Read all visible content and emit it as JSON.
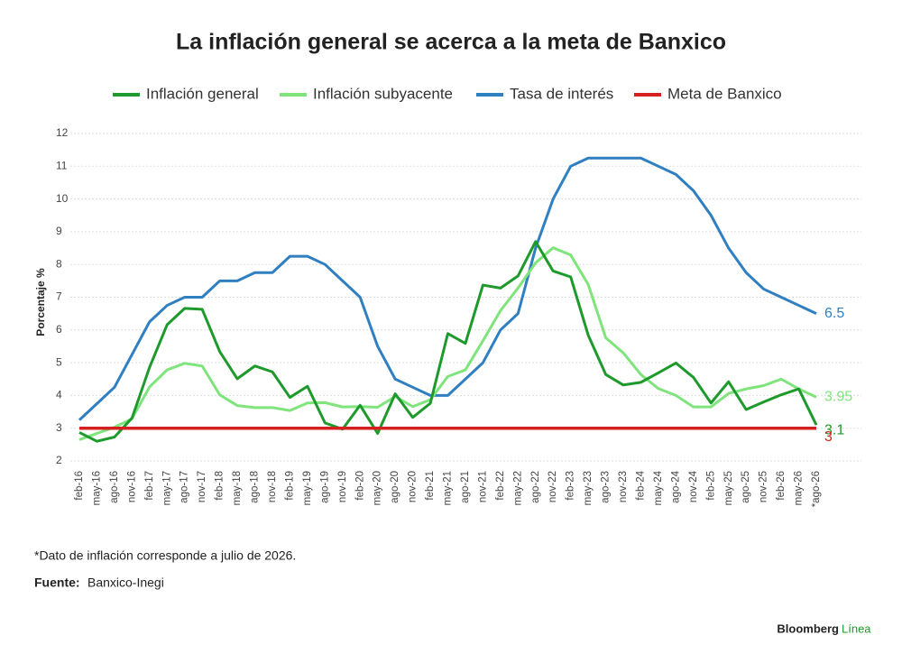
{
  "chart_data": {
    "type": "line",
    "title": "La inflación general se acerca a la meta de Banxico",
    "y_label": "Porcentaje %",
    "categories": [
      "feb-16",
      "may-16",
      "ago-16",
      "nov-16",
      "feb-17",
      "may-17",
      "ago-17",
      "nov-17",
      "feb-18",
      "may-18",
      "ago-18",
      "nov-18",
      "feb-19",
      "may-19",
      "ago-19",
      "nov-19",
      "feb-20",
      "may-20",
      "ago-20",
      "nov-20",
      "feb-21",
      "may-21",
      "ago-21",
      "nov-21",
      "feb-22",
      "may-22",
      "ago-22",
      "nov-22",
      "feb-23",
      "may-23",
      "ago-23",
      "nov-23",
      "feb-24",
      "may-24",
      "ago-24",
      "nov-24",
      "feb-25",
      "may-25",
      "ago-25",
      "nov-25",
      "feb-26",
      "may-26",
      "*ago-26"
    ],
    "series": [
      {
        "name": "Inflación general",
        "color": "#1e9a2c",
        "values": [
          2.87,
          2.6,
          2.73,
          3.31,
          4.86,
          6.16,
          6.66,
          6.63,
          5.34,
          4.51,
          4.9,
          4.72,
          3.94,
          4.28,
          3.16,
          2.97,
          3.7,
          2.84,
          4.05,
          3.33,
          3.76,
          5.89,
          5.59,
          7.37,
          7.28,
          7.65,
          8.7,
          7.8,
          7.62,
          5.84,
          4.64,
          4.32,
          4.4,
          4.69,
          4.99,
          4.55,
          3.77,
          4.42,
          3.57,
          3.8,
          4.02,
          4.2,
          3.1
        ]
      },
      {
        "name": "Inflación subyacente",
        "color": "#7fe47c",
        "values": [
          2.65,
          2.84,
          3.03,
          3.29,
          4.26,
          4.78,
          4.98,
          4.9,
          4.02,
          3.69,
          3.63,
          3.63,
          3.54,
          3.77,
          3.78,
          3.65,
          3.66,
          3.64,
          3.97,
          3.66,
          3.87,
          4.58,
          4.78,
          5.67,
          6.59,
          7.28,
          8.05,
          8.51,
          8.29,
          7.39,
          5.76,
          5.3,
          4.64,
          4.21,
          4.0,
          3.65,
          3.65,
          4.06,
          4.2,
          4.3,
          4.5,
          4.2,
          3.95
        ]
      },
      {
        "name": "Tasa de interés",
        "color": "#2f7fc1",
        "values": [
          3.25,
          3.75,
          4.25,
          5.25,
          6.25,
          6.75,
          7.0,
          7.0,
          7.5,
          7.5,
          7.75,
          7.75,
          8.25,
          8.25,
          8.0,
          7.5,
          7.0,
          5.5,
          4.5,
          4.25,
          4.0,
          4.0,
          4.5,
          5.0,
          6.0,
          6.5,
          8.5,
          10.0,
          11.0,
          11.25,
          11.25,
          11.25,
          11.25,
          11.0,
          10.75,
          10.25,
          9.5,
          8.5,
          7.75,
          7.25,
          7.0,
          6.75,
          6.5
        ]
      },
      {
        "name": "Meta de Banxico",
        "color": "#d61f1f",
        "values": [
          3,
          3,
          3,
          3,
          3,
          3,
          3,
          3,
          3,
          3,
          3,
          3,
          3,
          3,
          3,
          3,
          3,
          3,
          3,
          3,
          3,
          3,
          3,
          3,
          3,
          3,
          3,
          3,
          3,
          3,
          3,
          3,
          3,
          3,
          3,
          3,
          3,
          3,
          3,
          3,
          3,
          3,
          3
        ]
      }
    ],
    "ylim": [
      2,
      12
    ],
    "yticks": [
      2,
      3,
      4,
      5,
      6,
      7,
      8,
      9,
      10,
      11,
      12
    ],
    "grid": true,
    "footnote": "*Dato de inflación corresponde a julio de 2026.",
    "source_label": "Fuente:",
    "source": "Banxico-Inegi",
    "brand": "Bloomberg",
    "brand_accent": "Línea"
  }
}
